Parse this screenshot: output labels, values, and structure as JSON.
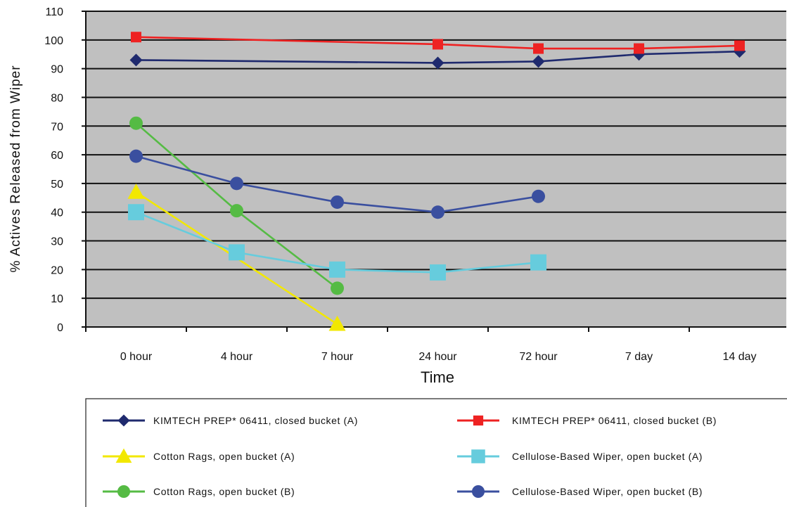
{
  "chart_data": {
    "type": "line",
    "xlabel": "Time",
    "ylabel": "% Actives Released from Wiper",
    "categories": [
      "0 hour",
      "4 hour",
      "7 hour",
      "24 hour",
      "72 hour",
      "7 day",
      "14 day"
    ],
    "ylim": [
      0,
      110
    ],
    "yticks": [
      0,
      10,
      20,
      30,
      40,
      50,
      60,
      70,
      80,
      90,
      100,
      110
    ],
    "grid": true,
    "plot_background": "#c0c0c0",
    "legend_position": "bottom",
    "series": [
      {
        "name": "KIMTECH PREP* 06411, closed bucket (A)",
        "color": "#1f2a6e",
        "marker": "diamond",
        "points": [
          {
            "t": 0.5,
            "y": 93
          },
          {
            "t": 3.5,
            "y": 92
          },
          {
            "t": 4.5,
            "y": 92.5
          },
          {
            "t": 5.5,
            "y": 95
          },
          {
            "t": 6.5,
            "y": 96
          }
        ]
      },
      {
        "name": "KIMTECH PREP* 06411, closed bucket (B)",
        "color": "#ee2222",
        "marker": "square",
        "points": [
          {
            "t": 0.5,
            "y": 101
          },
          {
            "t": 3.5,
            "y": 98.5
          },
          {
            "t": 4.5,
            "y": 97
          },
          {
            "t": 5.5,
            "y": 97
          },
          {
            "t": 6.5,
            "y": 98
          }
        ]
      },
      {
        "name": "Cotton Rags, open bucket (A)",
        "color": "#f2e800",
        "marker": "triangle",
        "points": [
          {
            "t": 0.5,
            "y": 47
          },
          {
            "t": 2.5,
            "y": 1
          }
        ]
      },
      {
        "name": "Cellulose-Based Wiper, open bucket (A)",
        "color": "#66ccdd",
        "marker": "bigsquare",
        "points": [
          {
            "t": 0.5,
            "y": 40
          },
          {
            "t": 1.5,
            "y": 26
          },
          {
            "t": 2.5,
            "y": 20
          },
          {
            "t": 3.5,
            "y": 19
          },
          {
            "t": 4.5,
            "y": 22.5
          }
        ]
      },
      {
        "name": "Cotton Rags, open bucket (B)",
        "color": "#55bb44",
        "marker": "circle",
        "points": [
          {
            "t": 0.5,
            "y": 71
          },
          {
            "t": 1.5,
            "y": 40.5
          },
          {
            "t": 2.5,
            "y": 13.5
          }
        ]
      },
      {
        "name": "Cellulose-Based Wiper, open bucket (B)",
        "color": "#3a4f9f",
        "marker": "circle",
        "points": [
          {
            "t": 0.5,
            "y": 59.5
          },
          {
            "t": 1.5,
            "y": 50
          },
          {
            "t": 2.5,
            "y": 43.5
          },
          {
            "t": 3.5,
            "y": 40
          },
          {
            "t": 4.5,
            "y": 45.5
          }
        ]
      }
    ],
    "legend_order": [
      0,
      1,
      2,
      3,
      4,
      5
    ]
  }
}
